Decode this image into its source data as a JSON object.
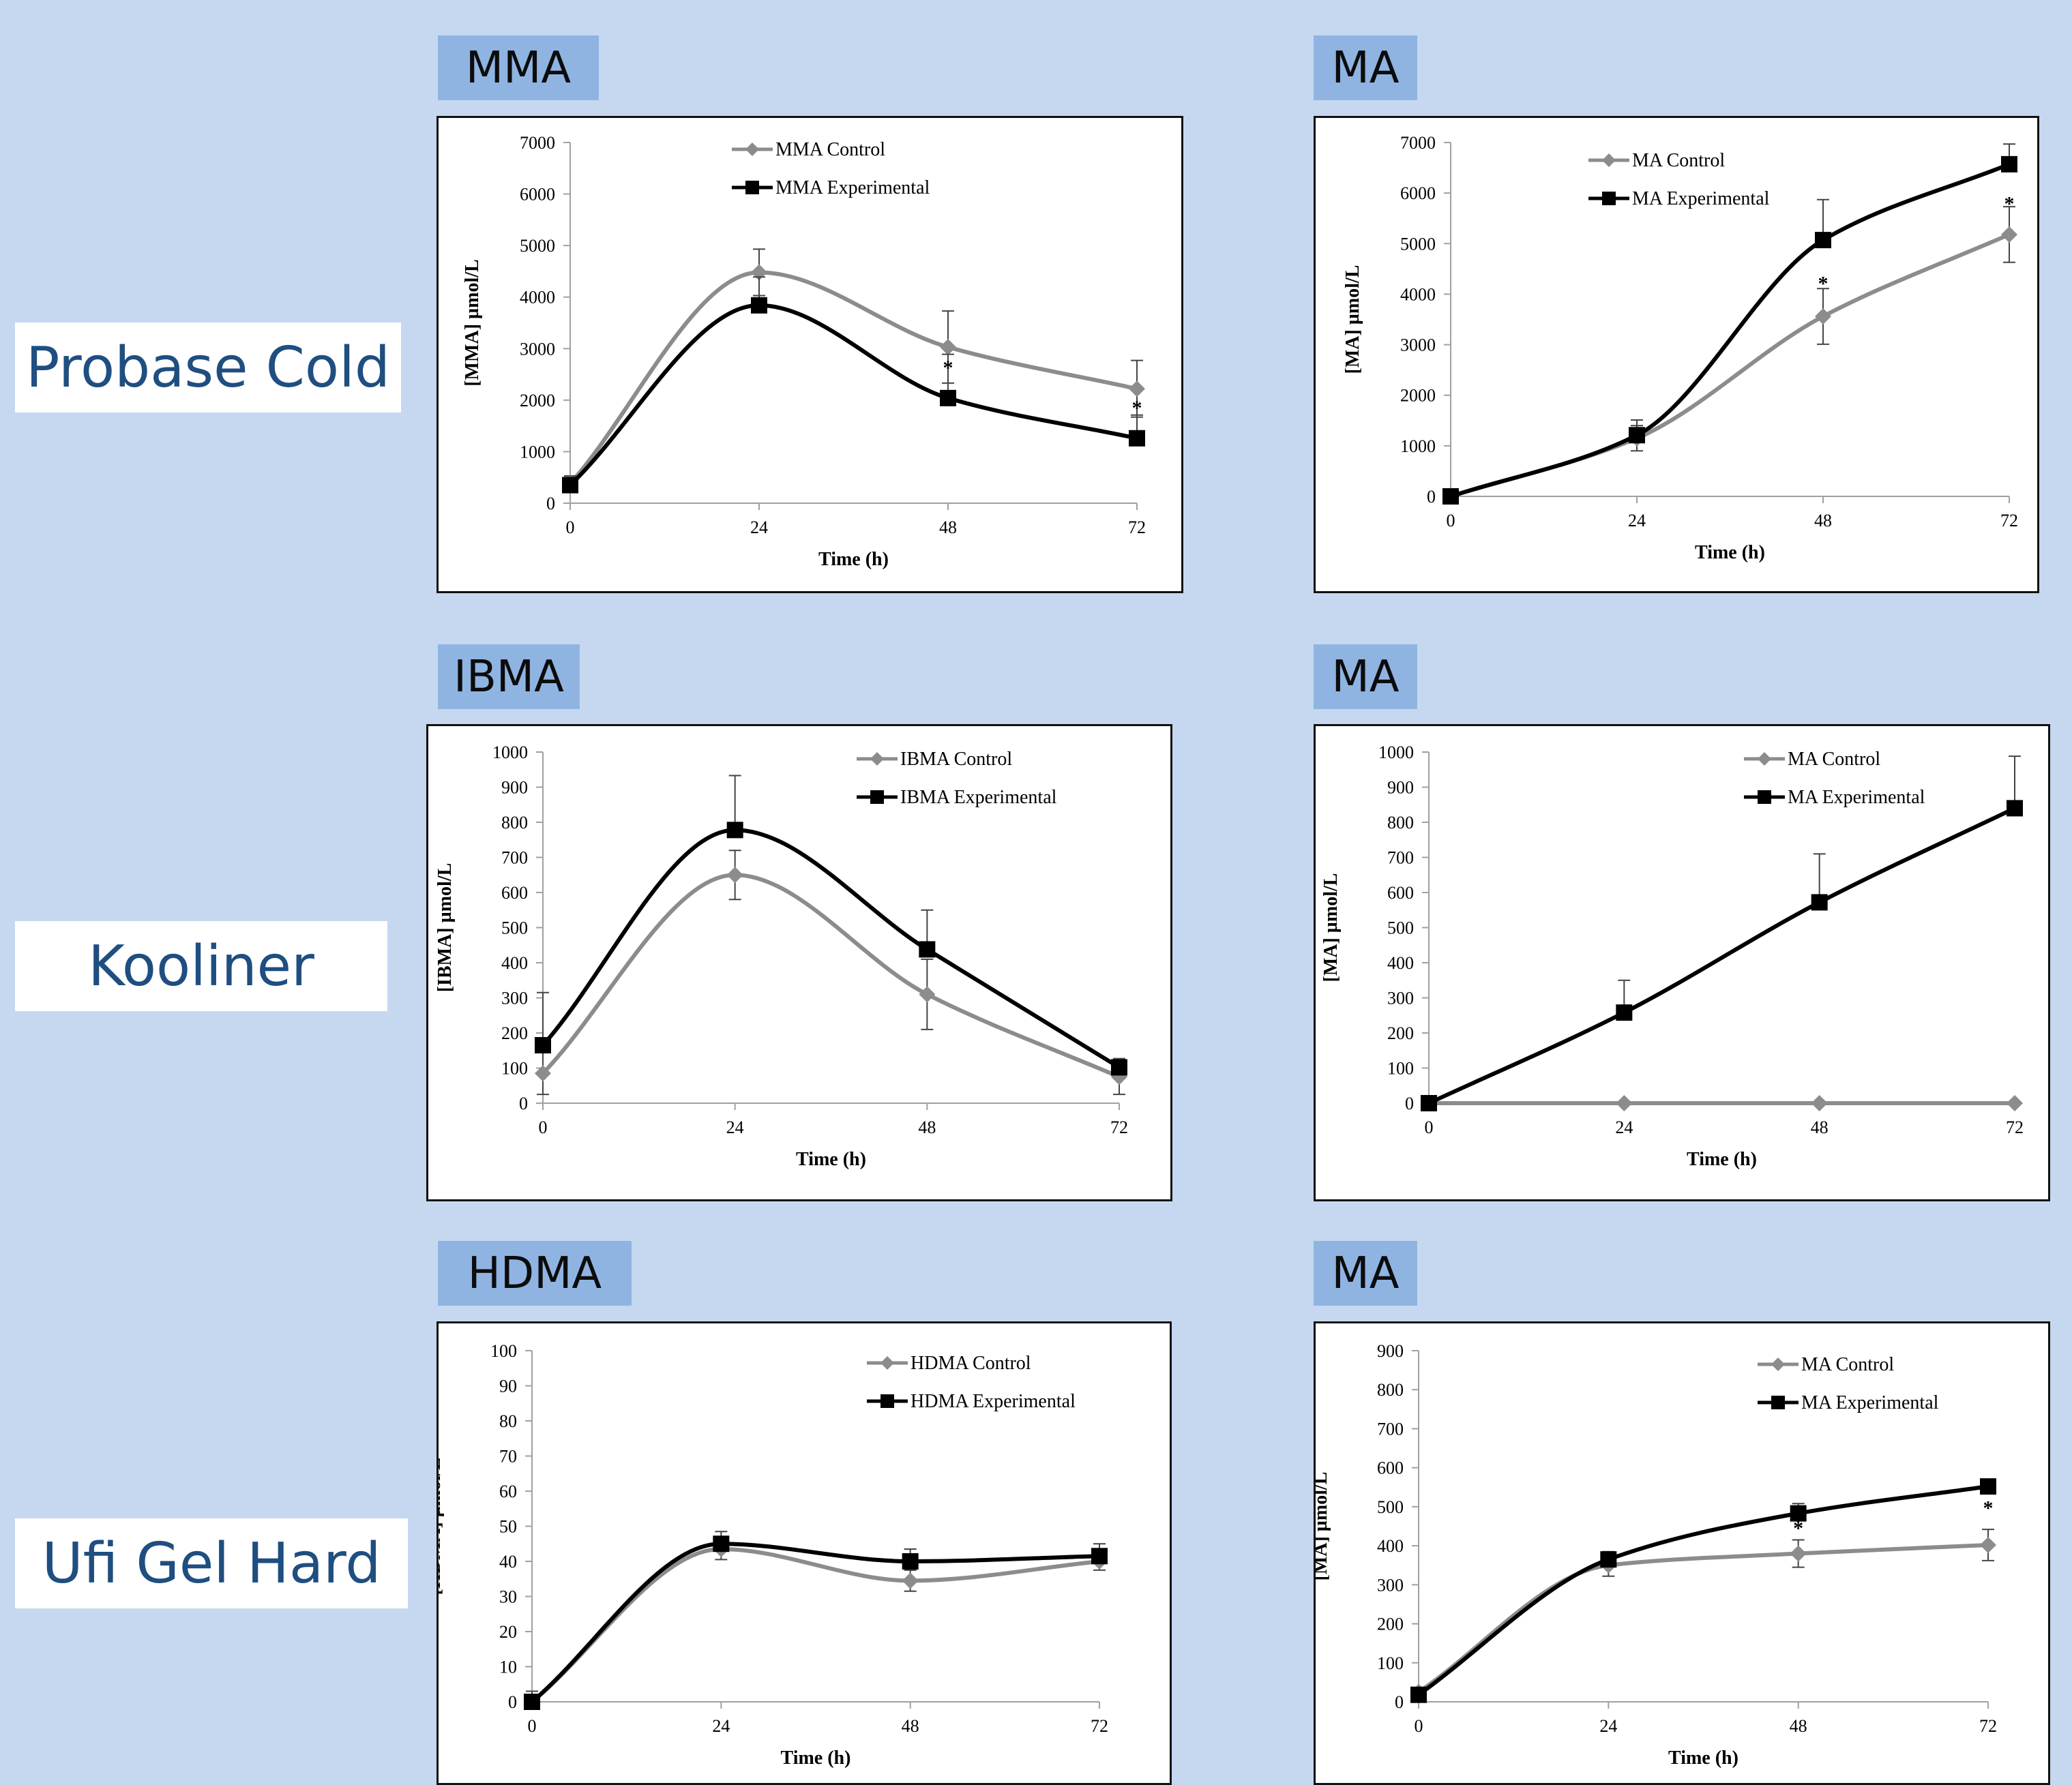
{
  "row_labels": [
    "Probase Cold",
    "Kooliner",
    "Ufi Gel Hard"
  ],
  "charts": [
    {
      "tag": "MMA"
    },
    {
      "tag": "MA"
    },
    {
      "tag": "IBMA"
    },
    {
      "tag": "MA"
    },
    {
      "tag": "HDMA"
    },
    {
      "tag": "MA"
    }
  ],
  "colors": {
    "background": "#c5d8f0",
    "tag_background": "#8fb4e2",
    "row_label_text": "#1f4e80",
    "control": "#8c8c8c",
    "experimental": "#000000"
  },
  "chart_data": [
    {
      "type": "line",
      "title": "MMA",
      "xlabel": "Time (h)",
      "ylabel": "[MMA] µmol/L",
      "x": [
        0,
        24,
        48,
        72
      ],
      "xlim": [
        0,
        72
      ],
      "ylim": [
        0,
        7000
      ],
      "yticks": [
        0,
        1000,
        2000,
        3000,
        4000,
        5000,
        6000,
        7000
      ],
      "xticks": [
        0,
        24,
        48,
        72
      ],
      "series": [
        {
          "name": "MMA Control",
          "values": [
            380,
            4480,
            3030,
            2220
          ],
          "error": [
            150,
            450,
            700,
            550
          ]
        },
        {
          "name": "MMA Experimental",
          "values": [
            350,
            3840,
            2040,
            1260
          ],
          "error": [
            150,
            550,
            850,
            450
          ]
        }
      ],
      "annotations": [
        {
          "text": "*",
          "x": 48,
          "y": 2500
        },
        {
          "text": "*",
          "x": 72,
          "y": 1720
        }
      ],
      "legend": "top-center",
      "grid": false
    },
    {
      "type": "line",
      "title": "MA",
      "xlabel": "Time (h)",
      "ylabel": "[MA] µmol/L",
      "x": [
        0,
        24,
        48,
        72
      ],
      "xlim": [
        0,
        72
      ],
      "ylim": [
        0,
        7000
      ],
      "yticks": [
        0,
        1000,
        2000,
        3000,
        4000,
        5000,
        6000,
        7000
      ],
      "xticks": [
        0,
        24,
        48,
        72
      ],
      "series": [
        {
          "name": "MA Control",
          "values": [
            0,
            1150,
            3560,
            5180
          ],
          "error": [
            0,
            250,
            550,
            550
          ]
        },
        {
          "name": "MA Experimental",
          "values": [
            0,
            1210,
            5070,
            6570
          ],
          "error": [
            0,
            300,
            800,
            400
          ]
        }
      ],
      "annotations": [
        {
          "text": "*",
          "x": 48,
          "y": 4080
        },
        {
          "text": "*",
          "x": 72,
          "y": 5660
        }
      ],
      "legend": "top-center",
      "grid": false
    },
    {
      "type": "line",
      "title": "IBMA",
      "xlabel": "Time (h)",
      "ylabel": "[IBMA] µmol/L",
      "x": [
        0,
        24,
        48,
        72
      ],
      "xlim": [
        0,
        72
      ],
      "ylim": [
        0,
        1000
      ],
      "yticks": [
        0,
        100,
        200,
        300,
        400,
        500,
        600,
        700,
        800,
        900,
        1000
      ],
      "xticks": [
        0,
        24,
        48,
        72
      ],
      "series": [
        {
          "name": "IBMA Control",
          "values": [
            85,
            650,
            310,
            75
          ],
          "error": [
            60,
            70,
            100,
            50
          ]
        },
        {
          "name": "IBMA Experimental",
          "values": [
            165,
            778,
            438,
            102
          ],
          "error": [
            150,
            155,
            112,
            25
          ]
        }
      ],
      "annotations": [],
      "legend": "top-right",
      "grid": false
    },
    {
      "type": "line",
      "title": "MA",
      "xlabel": "Time (h)",
      "ylabel": "[MA] µmol/L",
      "x": [
        0,
        24,
        48,
        72
      ],
      "xlim": [
        0,
        72
      ],
      "ylim": [
        0,
        1000
      ],
      "yticks": [
        0,
        100,
        200,
        300,
        400,
        500,
        600,
        700,
        800,
        900,
        1000
      ],
      "xticks": [
        0,
        24,
        48,
        72
      ],
      "series": [
        {
          "name": "MA Control",
          "values": [
            0,
            0,
            0,
            0
          ],
          "error": [
            0,
            0,
            0,
            0
          ]
        },
        {
          "name": "MA Experimental",
          "values": [
            0,
            258,
            572,
            840
          ],
          "error": [
            0,
            92,
            138,
            148
          ]
        }
      ],
      "annotations": [],
      "legend": "top-right",
      "grid": false
    },
    {
      "type": "line",
      "title": "HDMA",
      "xlabel": "Time (h)",
      "ylabel": "[HDMA] µmol/L",
      "x": [
        0,
        24,
        48,
        72
      ],
      "xlim": [
        0,
        72
      ],
      "ylim": [
        0,
        100
      ],
      "yticks": [
        0,
        10,
        20,
        30,
        40,
        50,
        60,
        70,
        80,
        90,
        100
      ],
      "xticks": [
        0,
        24,
        48,
        72
      ],
      "series": [
        {
          "name": "HDMA Control",
          "values": [
            0,
            43.5,
            34.5,
            40
          ],
          "error": [
            3,
            3,
            3,
            2.5
          ]
        },
        {
          "name": "HDMA Experimental",
          "values": [
            0,
            45,
            40,
            41.5
          ],
          "error": [
            3,
            3.5,
            3.5,
            3.5
          ]
        }
      ],
      "annotations": [],
      "legend": "top-right",
      "grid": false
    },
    {
      "type": "line",
      "title": "MA",
      "xlabel": "Time (h)",
      "ylabel": "[MA] µmol/L",
      "x": [
        0,
        24,
        48,
        72
      ],
      "xlim": [
        0,
        72
      ],
      "ylim": [
        0,
        900
      ],
      "yticks": [
        0,
        100,
        200,
        300,
        400,
        500,
        600,
        700,
        800,
        900
      ],
      "xticks": [
        0,
        24,
        48,
        72
      ],
      "series": [
        {
          "name": "MA Control",
          "values": [
            25,
            350,
            380,
            402
          ],
          "error": [
            10,
            28,
            35,
            40
          ]
        },
        {
          "name": "MA Experimental",
          "values": [
            18,
            365,
            483,
            552
          ],
          "error": [
            10,
            20,
            25,
            18
          ]
        }
      ],
      "annotations": [
        {
          "text": "*",
          "x": 48,
          "y": 428
        },
        {
          "text": "*",
          "x": 72,
          "y": 480
        }
      ],
      "legend": "top-right",
      "grid": false
    }
  ]
}
